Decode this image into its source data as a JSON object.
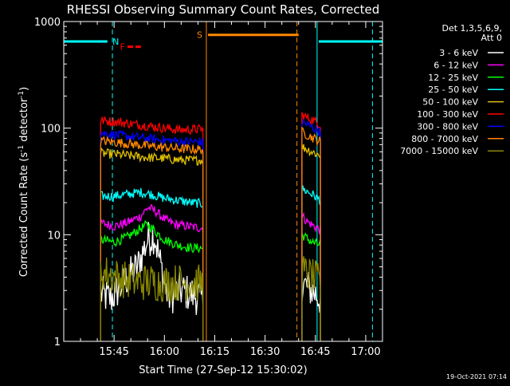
{
  "chart_data": {
    "type": "line",
    "title": "RHESSI Observing Summary Count Rates, Corrected",
    "xlabel": "Start Time (27-Sep-12 15:30:02)",
    "ylabel_main": "Corrected Count Rate (s",
    "ylabel_sup1": "-1",
    "ylabel_mid": " detector",
    "ylabel_sup2": "-1",
    "ylabel_end": ")",
    "y_scale": "log",
    "ylim": [
      1,
      1000
    ],
    "xlim_minutes": [
      0,
      95
    ],
    "x_ticks": [
      {
        "m": 15,
        "label": "15:45"
      },
      {
        "m": 30,
        "label": "16:00"
      },
      {
        "m": 45,
        "label": "16:15"
      },
      {
        "m": 60,
        "label": "16:30"
      },
      {
        "m": 75,
        "label": "16:45"
      },
      {
        "m": 90,
        "label": "17:00"
      }
    ],
    "y_ticks": [
      {
        "v": 1,
        "label": "1"
      },
      {
        "v": 10,
        "label": "10"
      },
      {
        "v": 100,
        "label": "100"
      },
      {
        "v": 1000,
        "label": "1000"
      }
    ],
    "legend": {
      "header": [
        "Det 1,3,5,6,9,",
        "Att 0"
      ],
      "placement": "right",
      "entries": [
        {
          "label": "3 - 6 keV",
          "color": "#ffffff"
        },
        {
          "label": "6 - 12 keV",
          "color": "#ff00ff"
        },
        {
          "label": "12 - 25 keV",
          "color": "#00ff00"
        },
        {
          "label": "25 - 50 keV",
          "color": "#00ffff"
        },
        {
          "label": "50 - 100 keV",
          "color": "#e0c000"
        },
        {
          "label": "100 - 300 keV",
          "color": "#ff0000"
        },
        {
          "label": "300 - 800 keV",
          "color": "#0000ff"
        },
        {
          "label": "800 - 7000 keV",
          "color": "#ff8800"
        },
        {
          "label": "7000 - 15000 keV",
          "color": "#888800"
        }
      ]
    },
    "segments": [
      [
        11,
        41.5
      ],
      [
        71,
        76.5
      ]
    ],
    "series": [
      {
        "name": "3 - 6 keV",
        "color": "#ffffff",
        "values": [
          [
            11,
            2.8
          ],
          [
            14,
            2.5
          ],
          [
            18,
            3.6
          ],
          [
            22,
            5
          ],
          [
            25,
            9
          ],
          [
            27,
            10
          ],
          [
            29,
            5
          ],
          [
            31,
            2.6
          ],
          [
            35,
            3.0
          ],
          [
            39,
            2.7
          ],
          [
            41.5,
            2.5
          ],
          [
            71,
            3.5
          ],
          [
            74,
            3.0
          ],
          [
            76.5,
            2.5
          ]
        ]
      },
      {
        "name": "6 - 12 keV",
        "color": "#ff00ff",
        "values": [
          [
            11,
            13
          ],
          [
            15,
            12
          ],
          [
            19,
            13
          ],
          [
            23,
            15
          ],
          [
            25,
            18
          ],
          [
            27,
            17
          ],
          [
            30,
            14
          ],
          [
            33,
            12.5
          ],
          [
            37,
            12
          ],
          [
            41.5,
            11.5
          ],
          [
            71,
            15
          ],
          [
            73,
            13
          ],
          [
            76.5,
            11
          ]
        ]
      },
      {
        "name": "12 - 25 keV",
        "color": "#00ff00",
        "values": [
          [
            11,
            9
          ],
          [
            15,
            8.5
          ],
          [
            19,
            9.5
          ],
          [
            23,
            11.5
          ],
          [
            25,
            12.5
          ],
          [
            27,
            11
          ],
          [
            30,
            9
          ],
          [
            34,
            8
          ],
          [
            38,
            7.5
          ],
          [
            41.5,
            7.5
          ],
          [
            71,
            10
          ],
          [
            74,
            8.5
          ],
          [
            76.5,
            8
          ]
        ]
      },
      {
        "name": "25 - 50 keV",
        "color": "#00ffff",
        "values": [
          [
            11,
            23
          ],
          [
            15,
            23
          ],
          [
            19,
            24
          ],
          [
            23,
            25
          ],
          [
            26,
            24
          ],
          [
            30,
            22
          ],
          [
            34,
            21
          ],
          [
            38,
            20
          ],
          [
            41.5,
            19.5
          ],
          [
            71,
            27
          ],
          [
            74,
            24
          ],
          [
            76.5,
            21
          ]
        ]
      },
      {
        "name": "50 - 100 keV",
        "color": "#e0c000",
        "values": [
          [
            11,
            58
          ],
          [
            15,
            57
          ],
          [
            20,
            55
          ],
          [
            25,
            53
          ],
          [
            30,
            52
          ],
          [
            35,
            50
          ],
          [
            41.5,
            50
          ],
          [
            71,
            67
          ],
          [
            74,
            60
          ],
          [
            76.5,
            55
          ]
        ]
      },
      {
        "name": "100 - 300 keV",
        "color": "#ff0000",
        "values": [
          [
            11,
            118
          ],
          [
            15,
            115
          ],
          [
            20,
            110
          ],
          [
            25,
            105
          ],
          [
            30,
            100
          ],
          [
            35,
            96
          ],
          [
            41.5,
            98
          ],
          [
            71,
            132
          ],
          [
            74,
            120
          ],
          [
            76.5,
            108
          ]
        ]
      },
      {
        "name": "300 - 800 keV",
        "color": "#0000ff",
        "values": [
          [
            11,
            90
          ],
          [
            15,
            87
          ],
          [
            20,
            83
          ],
          [
            25,
            80
          ],
          [
            30,
            77
          ],
          [
            35,
            75
          ],
          [
            41.5,
            74
          ],
          [
            71,
            115
          ],
          [
            74,
            102
          ],
          [
            76.5,
            92
          ]
        ]
      },
      {
        "name": "800 - 7000 keV",
        "color": "#ff8800",
        "values": [
          [
            11,
            76
          ],
          [
            15,
            74
          ],
          [
            20,
            71
          ],
          [
            25,
            68
          ],
          [
            30,
            66
          ],
          [
            35,
            64
          ],
          [
            41.5,
            63
          ],
          [
            71,
            92
          ],
          [
            74,
            82
          ],
          [
            76.5,
            75
          ]
        ]
      },
      {
        "name": "7000 - 15000 keV",
        "color": "#888800",
        "values": [
          [
            11,
            4.5
          ],
          [
            14,
            4.2
          ],
          [
            18,
            3.8
          ],
          [
            22,
            3.6
          ],
          [
            26,
            3.6
          ],
          [
            30,
            3.5
          ],
          [
            35,
            3.6
          ],
          [
            41.5,
            3.5
          ],
          [
            71,
            4.5
          ],
          [
            74,
            4.0
          ],
          [
            76.5,
            3.5
          ]
        ]
      }
    ],
    "flag_bars": [
      {
        "label": "N",
        "color": "#00ffff",
        "v": 650,
        "ranges": [
          [
            0,
            13
          ],
          [
            76,
            95
          ]
        ],
        "label_at": 15.5
      },
      {
        "label": "F",
        "color": "#ff0000",
        "v": 580,
        "ranges": [
          [
            19,
            23
          ]
        ],
        "label_at": 17.5
      },
      {
        "label": "S",
        "color": "#ff8800",
        "v": 750,
        "ranges": [
          [
            43,
            70
          ]
        ],
        "label_at": 40.5
      }
    ],
    "vlines": [
      {
        "m": 0,
        "color": "#00ffff",
        "style": "solid"
      },
      {
        "m": 14.5,
        "color": "#00ffff",
        "style": "dashed"
      },
      {
        "m": 42.5,
        "color": "#ff8800",
        "style": "solid"
      },
      {
        "m": 69.5,
        "color": "#ff8800",
        "style": "dashed"
      },
      {
        "m": 75.5,
        "color": "#00ffff",
        "style": "solid"
      },
      {
        "m": 92,
        "color": "#00ffff",
        "style": "dashed"
      }
    ]
  },
  "footer": {
    "timestamp": "19-Oct-2021 07:14"
  }
}
